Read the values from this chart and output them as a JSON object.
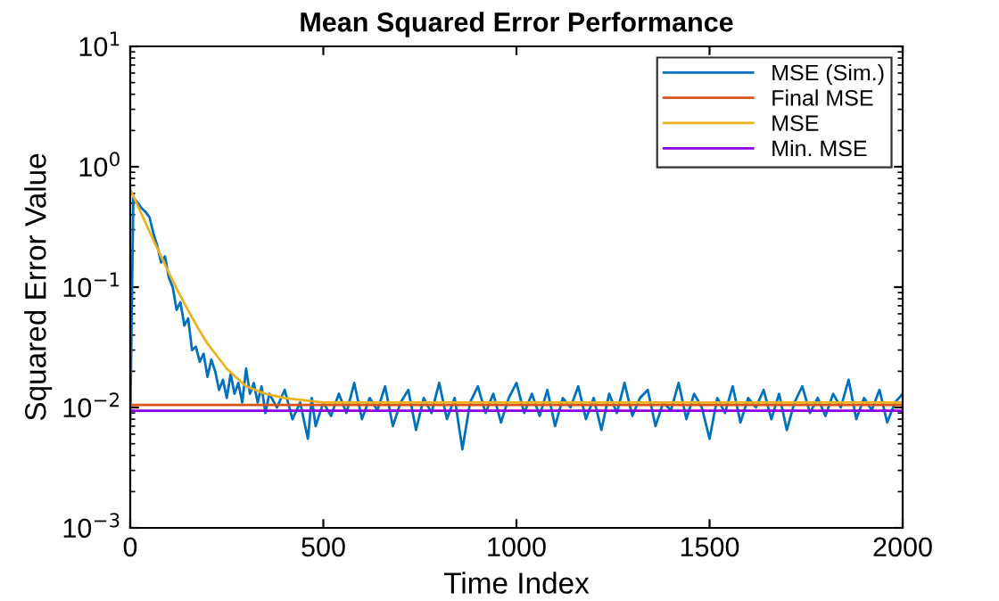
{
  "chart_data": {
    "type": "line",
    "title": "Mean Squared Error Performance",
    "xlabel": "Time Index",
    "ylabel": "Squared Error Value",
    "log": "y",
    "xlim": [
      0,
      2000
    ],
    "xticks": [
      0,
      500,
      1000,
      1500,
      2000
    ],
    "ylim": [
      0.001,
      10
    ],
    "yticks": [
      {
        "value": 0.001,
        "label": "10$^{−3}$"
      },
      {
        "value": 0.01,
        "label": "10$^{−2}$"
      },
      {
        "value": 0.1,
        "label": "10$^{−1}$"
      },
      {
        "value": 1,
        "label": "10$^{0}$"
      },
      {
        "value": 10,
        "label": "10$^{1}$"
      }
    ],
    "grid": false,
    "legend": "top right",
    "marker": "none",
    "line_style": "solid",
    "series": [
      {
        "name": "MSE (Sim.)",
        "color": "#0072bd",
        "x": [
          0,
          8,
          20,
          30,
          40,
          50,
          60,
          70,
          80,
          90,
          100,
          110,
          120,
          130,
          140,
          150,
          160,
          170,
          180,
          190,
          200,
          210,
          220,
          230,
          240,
          250,
          260,
          270,
          280,
          290,
          300,
          310,
          320,
          330,
          340,
          350,
          360,
          380,
          400,
          420,
          440,
          460,
          470,
          480,
          500,
          520,
          540,
          560,
          580,
          600,
          620,
          640,
          660,
          680,
          700,
          720,
          740,
          760,
          780,
          800,
          820,
          840,
          860,
          880,
          900,
          920,
          940,
          960,
          980,
          1000,
          1020,
          1040,
          1060,
          1080,
          1100,
          1120,
          1140,
          1160,
          1180,
          1200,
          1220,
          1240,
          1260,
          1280,
          1300,
          1320,
          1340,
          1360,
          1380,
          1400,
          1420,
          1440,
          1460,
          1480,
          1500,
          1520,
          1540,
          1560,
          1580,
          1600,
          1620,
          1640,
          1660,
          1680,
          1700,
          1720,
          1740,
          1760,
          1780,
          1800,
          1820,
          1840,
          1860,
          1880,
          1900,
          1920,
          1940,
          1960,
          1980,
          2000
        ],
        "values": [
          0.0075,
          0.55,
          0.5,
          0.45,
          0.42,
          0.38,
          0.28,
          0.22,
          0.16,
          0.18,
          0.12,
          0.1,
          0.065,
          0.075,
          0.048,
          0.055,
          0.03,
          0.032,
          0.024,
          0.028,
          0.018,
          0.025,
          0.02,
          0.014,
          0.017,
          0.012,
          0.019,
          0.013,
          0.016,
          0.011,
          0.021,
          0.013,
          0.016,
          0.011,
          0.015,
          0.009,
          0.013,
          0.01,
          0.014,
          0.008,
          0.011,
          0.0055,
          0.012,
          0.007,
          0.011,
          0.0085,
          0.013,
          0.009,
          0.016,
          0.008,
          0.012,
          0.0095,
          0.015,
          0.007,
          0.011,
          0.014,
          0.0065,
          0.012,
          0.009,
          0.016,
          0.008,
          0.012,
          0.0045,
          0.011,
          0.015,
          0.009,
          0.013,
          0.0075,
          0.012,
          0.016,
          0.009,
          0.013,
          0.0085,
          0.014,
          0.007,
          0.012,
          0.01,
          0.015,
          0.008,
          0.012,
          0.0065,
          0.013,
          0.009,
          0.016,
          0.0085,
          0.012,
          0.014,
          0.007,
          0.011,
          0.0095,
          0.016,
          0.008,
          0.013,
          0.01,
          0.0055,
          0.012,
          0.009,
          0.015,
          0.0075,
          0.012,
          0.01,
          0.014,
          0.008,
          0.013,
          0.0065,
          0.011,
          0.015,
          0.009,
          0.012,
          0.0085,
          0.013,
          0.01,
          0.017,
          0.008,
          0.012,
          0.0095,
          0.014,
          0.0075,
          0.011,
          0.013
        ]
      },
      {
        "name": "Final MSE",
        "color": "#d95319",
        "x": [
          0,
          2000
        ],
        "values": [
          0.0105,
          0.0105
        ]
      },
      {
        "name": "MSE",
        "color": "#edb120",
        "x": [
          0,
          20,
          40,
          60,
          80,
          100,
          125,
          150,
          175,
          200,
          250,
          300,
          350,
          400,
          500,
          2000
        ],
        "values": [
          0.65,
          0.47,
          0.34,
          0.246,
          0.18,
          0.132,
          0.091,
          0.064,
          0.046,
          0.034,
          0.021,
          0.015,
          0.013,
          0.012,
          0.011,
          0.011
        ]
      },
      {
        "name": "Min. MSE",
        "color": "#8b00e6",
        "x": [
          0,
          2000
        ],
        "values": [
          0.0094,
          0.0094
        ]
      }
    ]
  }
}
